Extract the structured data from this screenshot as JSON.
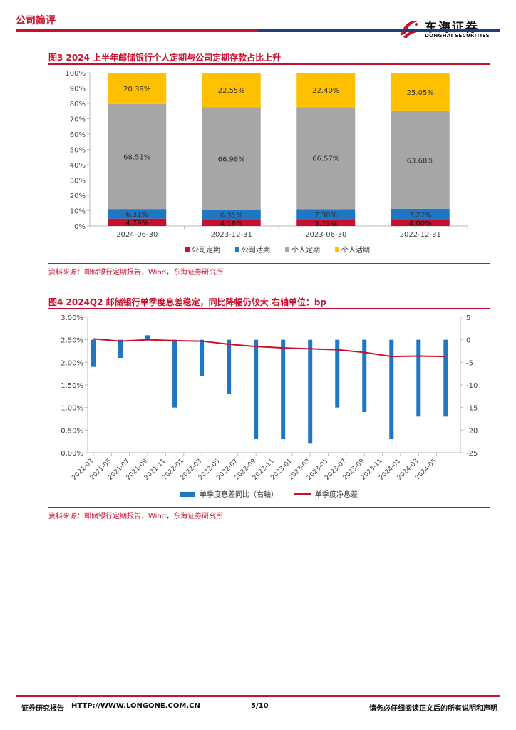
{
  "header": {
    "section": "公司简评",
    "logo_cn": "东海证券",
    "logo_en": "DONGHAI SECURITIES"
  },
  "figure3": {
    "title": "图3  2024 上半年邮储银行个人定期与公司定期存款占比上升",
    "source": "资料来源：邮储银行定期报告，Wind，东海证券研究所"
  },
  "figure4": {
    "title": "图4  2024Q2 邮储银行单季度息差稳定，同比降幅仍较大  右轴单位：bp",
    "source": "资料来源：邮储银行定期报告，Wind，东海证券研究所"
  },
  "footer": {
    "left": "证券研究报告",
    "url": "HTTP://WWW.LONGONE.COM.CN",
    "page": "5/10",
    "right": "请务必仔细阅读正文后的所有说明和声明"
  },
  "chart_data": [
    {
      "type": "bar",
      "stacked": true,
      "categories": [
        "2024-06-30",
        "2023-12-31",
        "2023-06-30",
        "2022-12-31"
      ],
      "series": [
        {
          "name": "公司定期",
          "color": "#c8102e",
          "values": [
            4.79,
            4.16,
            3.73,
            4.0
          ],
          "labels": [
            "4.79%",
            "4.16%",
            "3.73%",
            "4.00%"
          ]
        },
        {
          "name": "公司活期",
          "color": "#1f77c4",
          "values": [
            6.31,
            6.31,
            7.3,
            7.27
          ],
          "labels": [
            "6.31%",
            "6.31%",
            "7.30%",
            "7.27%"
          ]
        },
        {
          "name": "个人定期",
          "color": "#a6a6a6",
          "values": [
            68.51,
            66.98,
            66.57,
            63.68
          ],
          "labels": [
            "68.51%",
            "66.98%",
            "66.57%",
            "63.68%"
          ]
        },
        {
          "name": "个人活期",
          "color": "#ffc000",
          "values": [
            20.39,
            22.55,
            22.4,
            25.05
          ],
          "labels": [
            "20.39%",
            "22.55%",
            "22.40%",
            "25.05%"
          ]
        }
      ],
      "ylim": [
        0,
        100
      ],
      "yticks": [
        "0%",
        "10%",
        "20%",
        "30%",
        "40%",
        "50%",
        "60%",
        "70%",
        "80%",
        "90%",
        "100%"
      ],
      "legend_position": "bottom"
    },
    {
      "type": "bar+line",
      "categories": [
        "2021-03",
        "2021-05",
        "2021-07",
        "2021-09",
        "2021-11",
        "2022-01",
        "2022-03",
        "2022-05",
        "2022-07",
        "2022-09",
        "2022-11",
        "2023-01",
        "2023-03",
        "2023-05",
        "2023-07",
        "2023-09",
        "2023-11",
        "2024-01",
        "2024-03",
        "2024-05"
      ],
      "x_quarters": [
        "2021-03",
        "2021-06",
        "2021-09",
        "2021-12",
        "2022-03",
        "2022-06",
        "2022-09",
        "2022-12",
        "2023-03",
        "2023-06",
        "2023-09",
        "2023-12",
        "2024-03",
        "2024-06"
      ],
      "bar_series": {
        "name": "单季度息差同比（右轴）",
        "color": "#1f77c4",
        "axis": "right",
        "values": [
          -6,
          -4,
          1,
          -15,
          -8,
          -12,
          -22,
          -22,
          -23,
          -15,
          -16,
          -22,
          -17,
          -17
        ]
      },
      "line_series": {
        "name": "单季度净息差",
        "color": "#c8102e",
        "axis": "left",
        "values": [
          2.52,
          2.47,
          2.5,
          2.48,
          2.47,
          2.4,
          2.35,
          2.32,
          2.3,
          2.28,
          2.22,
          2.13,
          2.14,
          2.13
        ]
      },
      "left_axis": {
        "ylim": [
          0,
          3.0
        ],
        "ticks": [
          "0.00%",
          "0.50%",
          "1.00%",
          "1.50%",
          "2.00%",
          "2.50%",
          "3.00%"
        ]
      },
      "right_axis": {
        "ylim": [
          -25,
          5
        ],
        "ticks": [
          "-25",
          "-20",
          "-15",
          "-10",
          "-5",
          "0",
          "5"
        ]
      },
      "legend_position": "bottom"
    }
  ]
}
